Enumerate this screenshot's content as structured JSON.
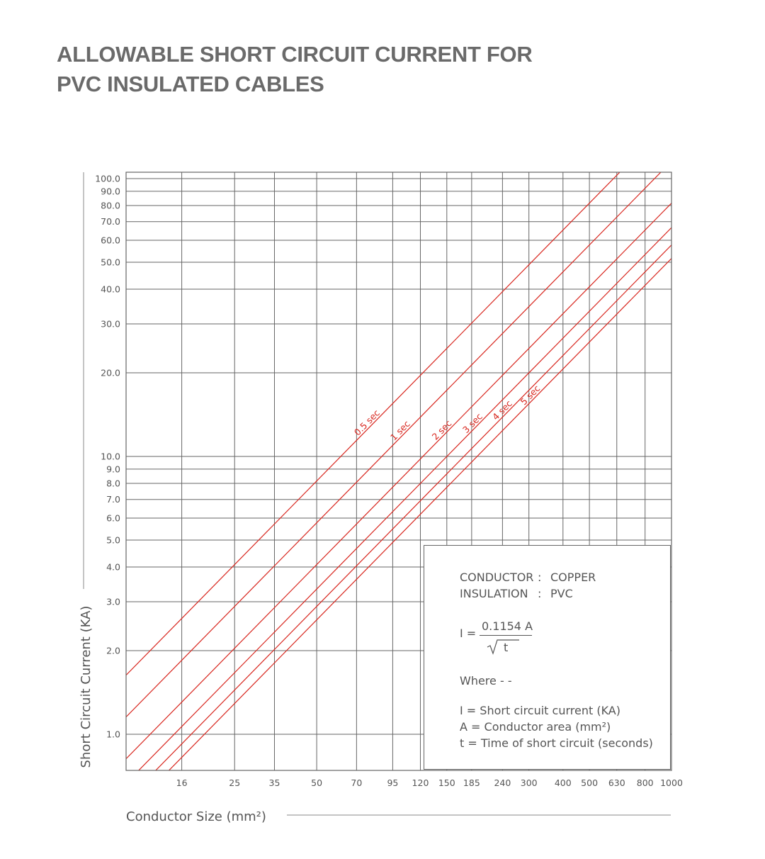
{
  "title_line1": "ALLOWABLE SHORT CIRCUIT CURRENT FOR",
  "title_line2": "PVC INSULATED CABLES",
  "legend": {
    "conductor_label": "CONDUCTOR",
    "conductor_sep": ":",
    "conductor_value": "COPPER",
    "insulation_label": "INSULATION",
    "insulation_sep": ":",
    "insulation_value": "PVC",
    "formula_lhs": "I =",
    "formula_num": "0.1154 A",
    "formula_den": "t",
    "where": "Where - -",
    "def_i": "I = Short circuit current (KA)",
    "def_a": "A = Conductor area (mm²)",
    "def_t": "t = Time of short circuit (seconds)"
  },
  "colors": {
    "curve": "#d8261e",
    "grid": "#666666",
    "text": "#555555"
  },
  "chart_data": {
    "type": "line",
    "title": "ALLOWABLE SHORT CIRCUIT CURRENT FOR PVC INSULATED CABLES",
    "xlabel": "Conductor Size (mm²)",
    "ylabel": "Short Circuit Current (KA)",
    "x_scale": "log",
    "y_scale": "log",
    "xlim": [
      10,
      1000
    ],
    "ylim": [
      0.7,
      116
    ],
    "grid": true,
    "x_ticks": [
      16,
      25,
      35,
      50,
      70,
      95,
      120,
      150,
      185,
      240,
      300,
      400,
      500,
      630,
      800,
      1000
    ],
    "x_tick_labels": [
      "16",
      "25",
      "35",
      "50",
      "70",
      "95",
      "120",
      "150",
      "185",
      "240",
      "300",
      "400",
      "500",
      "630",
      "800",
      "1000"
    ],
    "y_ticks": [
      1,
      2,
      3,
      4,
      5,
      6,
      7,
      8,
      9,
      10,
      20,
      30,
      40,
      50,
      60,
      70,
      80,
      90,
      100
    ],
    "y_tick_labels": [
      "1.0",
      "2.0",
      "3.0",
      "4.0",
      "5.0",
      "6.0",
      "7.0",
      "8.0",
      "9.0",
      "10.0",
      "20.0",
      "30.0",
      "40.0",
      "50.0",
      "60.0",
      "70.0",
      "80.0",
      "90.0",
      "100.0"
    ],
    "formula": "I = 0.1154 A / sqrt(t)",
    "coefficient": 0.1154,
    "series": [
      {
        "name": "0.5 sec",
        "t": 0.5
      },
      {
        "name": "1 sec",
        "t": 1
      },
      {
        "name": "2 sec",
        "t": 2
      },
      {
        "name": "3 sec",
        "t": 3
      },
      {
        "name": "4 sec",
        "t": 4
      },
      {
        "name": "5 sec",
        "t": 5
      }
    ]
  }
}
